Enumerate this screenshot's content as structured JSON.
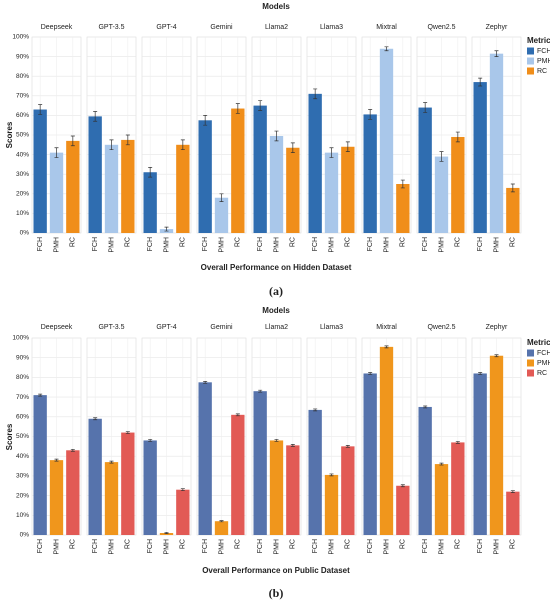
{
  "chart_data": [
    {
      "type": "bar",
      "title": "Models",
      "x_label": "Overall Performance on Hidden Dataset",
      "y_label": "Scores",
      "panel_label": "(a)",
      "legend_title": "Metrics",
      "facets": [
        "Deepseek",
        "GPT-3.5",
        "GPT-4",
        "Gemini",
        "Llama2",
        "Llama3",
        "Mixtral",
        "Qwen2.5",
        "Zephyr"
      ],
      "series": [
        {
          "name": "FCH",
          "color": "#2f6db0",
          "values": [
            63,
            59.5,
            31,
            57.5,
            65,
            71,
            60.5,
            64,
            77
          ],
          "errors": [
            2.5,
            2.5,
            2.5,
            2.5,
            2.5,
            2.5,
            2.5,
            2.5,
            2
          ]
        },
        {
          "name": "PMH",
          "color": "#a9c7ea",
          "values": [
            41,
            45,
            2,
            18,
            49.5,
            41,
            94,
            39,
            91.5
          ],
          "errors": [
            2.5,
            2.5,
            1,
            2,
            2.5,
            2.5,
            1,
            2.5,
            1.5
          ]
        },
        {
          "name": "RC",
          "color": "#f08e1a",
          "values": [
            47,
            47.5,
            45,
            63.5,
            43.5,
            44,
            25,
            49,
            23
          ],
          "errors": [
            2.5,
            2.5,
            2.5,
            2.5,
            2.5,
            2.5,
            2,
            2.5,
            2
          ]
        }
      ],
      "ylim": [
        0,
        100
      ],
      "yticks": [
        {
          "value": 0,
          "label": "0%"
        },
        {
          "value": 10,
          "label": "10%"
        },
        {
          "value": 20,
          "label": "20%"
        },
        {
          "value": 30,
          "label": "30%"
        },
        {
          "value": 40,
          "label": "40%"
        },
        {
          "value": 50,
          "label": "50%"
        },
        {
          "value": 60,
          "label": "60%"
        },
        {
          "value": 70,
          "label": "70%"
        },
        {
          "value": 80,
          "label": "80%"
        },
        {
          "value": 90,
          "label": "90%"
        },
        {
          "value": 100,
          "label": "100%"
        }
      ],
      "grid": true
    },
    {
      "type": "bar",
      "title": "Models",
      "x_label": "Overall Performance on Public Dataset",
      "y_label": "Scores",
      "panel_label": "(b)",
      "legend_title": "Metrices",
      "facets": [
        "Deepseek",
        "GPT-3.5",
        "GPT-4",
        "Gemini",
        "Llama2",
        "Llama3",
        "Mixtral",
        "Qwen2.5",
        "Zephyr"
      ],
      "series": [
        {
          "name": "FCH",
          "color": "#5673ac",
          "values": [
            71,
            59,
            48,
            77.5,
            73,
            63.5,
            82,
            65,
            82
          ],
          "errors": [
            0.5,
            0.5,
            0.5,
            0.5,
            0.5,
            0.5,
            0.5,
            0.5,
            0.5
          ]
        },
        {
          "name": "PMH",
          "color": "#f0961c",
          "values": [
            38,
            37,
            1,
            7,
            48,
            30.5,
            95.5,
            36,
            91
          ],
          "errors": [
            0.5,
            0.5,
            0.3,
            0.3,
            0.5,
            0.5,
            0.5,
            0.5,
            0.5
          ]
        },
        {
          "name": "RC",
          "color": "#e25a55",
          "values": [
            43,
            52,
            23,
            61,
            45.5,
            45,
            25,
            47,
            22
          ],
          "errors": [
            0.5,
            0.5,
            0.5,
            0.5,
            0.5,
            0.5,
            0.5,
            0.5,
            0.5
          ]
        }
      ],
      "ylim": [
        0,
        100
      ],
      "yticks": [
        {
          "value": 0,
          "label": "0%"
        },
        {
          "value": 10,
          "label": "10%"
        },
        {
          "value": 20,
          "label": "20%"
        },
        {
          "value": 30,
          "label": "30%"
        },
        {
          "value": 40,
          "label": "40%"
        },
        {
          "value": 50,
          "label": "50%"
        },
        {
          "value": 60,
          "label": "60%"
        },
        {
          "value": 70,
          "label": "70%"
        },
        {
          "value": 80,
          "label": "80%"
        },
        {
          "value": 90,
          "label": "90%"
        },
        {
          "value": 100,
          "label": "100%"
        }
      ],
      "grid": true
    }
  ]
}
